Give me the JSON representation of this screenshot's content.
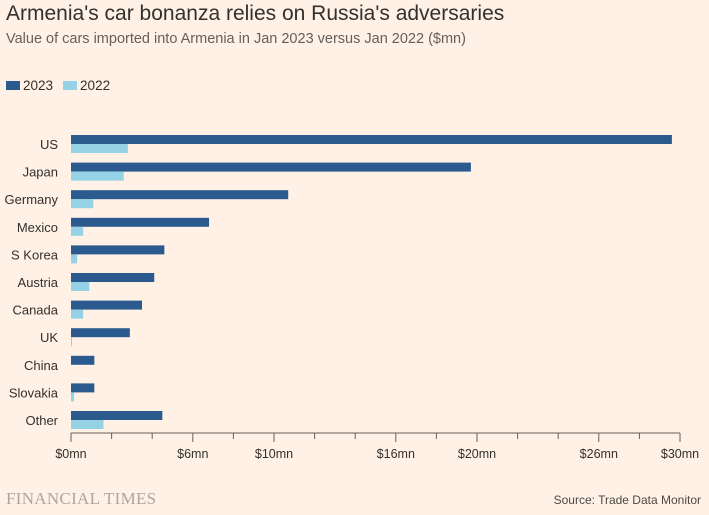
{
  "header": {
    "title": "Armenia's car bonanza relies on Russia's adversaries",
    "subtitle": "Value of cars imported into Armenia in Jan 2023 versus Jan 2022 ($mn)"
  },
  "colors": {
    "series_2023": "#2B5B8E",
    "series_2022": "#96D2E6",
    "background": "#FFF1E5",
    "axis": "#66605C"
  },
  "chart_data": {
    "type": "bar",
    "orientation": "horizontal",
    "title": "Armenia's car bonanza relies on Russia's adversaries",
    "subtitle": "Value of cars imported into Armenia in Jan 2023 versus Jan 2022 ($mn)",
    "categories": [
      "US",
      "Japan",
      "Germany",
      "Mexico",
      "S Korea",
      "Austria",
      "Canada",
      "UK",
      "China",
      "Slovakia",
      "Other"
    ],
    "series": [
      {
        "name": "2023",
        "values": [
          29.6,
          19.7,
          10.7,
          6.8,
          4.6,
          4.1,
          3.5,
          2.9,
          1.15,
          1.15,
          4.5
        ]
      },
      {
        "name": "2022",
        "values": [
          2.8,
          2.6,
          1.1,
          0.6,
          0.3,
          0.9,
          0.6,
          0.05,
          0.0,
          0.15,
          1.6
        ]
      }
    ],
    "xlim": [
      0,
      30
    ],
    "tick_values": [
      0,
      6,
      10,
      16,
      20,
      26,
      30
    ],
    "tick_labels": [
      "$0mn",
      "$6mn",
      "$10mn",
      "$16mn",
      "$20mn",
      "$26mn",
      "$30mn"
    ],
    "minor_ticks": [
      2,
      4,
      8,
      12,
      14,
      18,
      22,
      24,
      28
    ],
    "xlabel": "",
    "ylabel": "",
    "legend_position": "top-left"
  },
  "footer": {
    "logo_text": "FINANCIAL TIMES",
    "source": "Source: Trade Data Monitor"
  }
}
